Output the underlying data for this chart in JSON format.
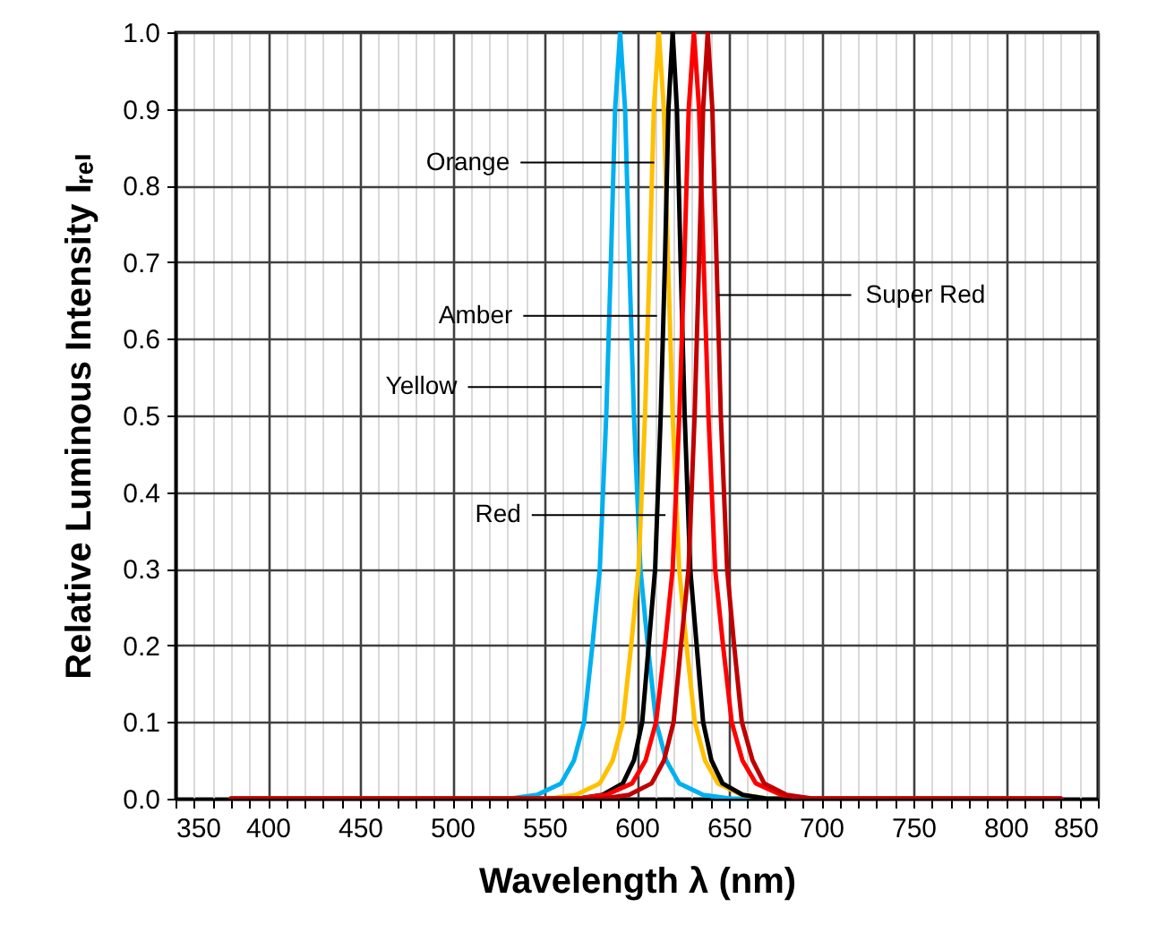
{
  "chart_data": {
    "type": "line",
    "xlabel": "Wavelength λ (nm)",
    "ylabel": "Relative Luminous Intensity Iᵣₑₗ",
    "xlim": [
      350,
      850
    ],
    "ylim": [
      0,
      1
    ],
    "xticks": [
      350,
      {
        "value": 360,
        "label": null
      },
      {
        "value": 370,
        "label": null
      },
      {
        "value": 380,
        "label": null
      },
      {
        "value": 390,
        "label": null
      },
      400,
      {
        "value": 410,
        "label": null
      },
      {
        "value": 420,
        "label": null
      },
      {
        "value": 430,
        "label": null
      },
      {
        "value": 440,
        "label": null
      },
      450,
      {
        "value": 460,
        "label": null
      },
      {
        "value": 470,
        "label": null
      },
      {
        "value": 480,
        "label": null
      },
      {
        "value": 490,
        "label": null
      },
      500,
      {
        "value": 510,
        "label": null
      },
      {
        "value": 520,
        "label": null
      },
      {
        "value": 530,
        "label": null
      },
      {
        "value": 540,
        "label": null
      },
      550,
      {
        "value": 560,
        "label": null
      },
      {
        "value": 570,
        "label": null
      },
      {
        "value": 580,
        "label": null
      },
      {
        "value": 590,
        "label": null
      },
      600,
      {
        "value": 610,
        "label": null
      },
      {
        "value": 620,
        "label": null
      },
      {
        "value": 630,
        "label": null
      },
      {
        "value": 640,
        "label": null
      },
      650,
      {
        "value": 660,
        "label": null
      },
      {
        "value": 670,
        "label": null
      },
      {
        "value": 680,
        "label": null
      },
      {
        "value": 690,
        "label": null
      },
      700,
      {
        "value": 710,
        "label": null
      },
      {
        "value": 720,
        "label": null
      },
      {
        "value": 730,
        "label": null
      },
      {
        "value": 740,
        "label": null
      },
      750,
      {
        "value": 760,
        "label": null
      },
      {
        "value": 770,
        "label": null
      },
      {
        "value": 780,
        "label": null
      },
      {
        "value": 790,
        "label": null
      },
      800,
      {
        "value": 810,
        "label": null
      },
      {
        "value": 820,
        "label": null
      },
      {
        "value": 830,
        "label": null
      },
      {
        "value": 840,
        "label": null
      },
      850
    ],
    "yticks": [
      {
        "value": 0,
        "label": "0.0"
      },
      0.1,
      0.2,
      0.3,
      0.4,
      0.5,
      0.6,
      0.7,
      0.8,
      0.9,
      {
        "value": 1,
        "label": "1.0"
      }
    ],
    "grid": true,
    "line_style": "solid",
    "series": [
      {
        "color": "#00b0f0",
        "x": [
          380,
          531,
          546,
          559,
          566,
          571.5,
          576,
          580,
          583.5,
          586,
          588.3,
          591,
          593.7,
          596,
          598.5,
          602,
          606,
          610.5,
          616,
          623,
          636,
          651,
          830
        ],
        "values": [
          0,
          0,
          0.005,
          0.02,
          0.05,
          0.1,
          0.2,
          0.3,
          0.5,
          0.7,
          0.9,
          1,
          0.9,
          0.7,
          0.5,
          0.3,
          0.2,
          0.1,
          0.05,
          0.02,
          0.005,
          0,
          0
        ]
      },
      {
        "color": "#ffc000",
        "x": [
          380,
          552,
          567,
          580,
          587,
          592.5,
          597,
          601,
          604.5,
          607,
          609.3,
          612,
          614.7,
          617,
          619.5,
          623,
          627,
          631.5,
          637,
          644,
          657,
          672,
          830
        ],
        "values": [
          0,
          0,
          0.005,
          0.02,
          0.05,
          0.1,
          0.2,
          0.3,
          0.5,
          0.7,
          0.9,
          1,
          0.9,
          0.7,
          0.5,
          0.3,
          0.2,
          0.1,
          0.05,
          0.02,
          0.005,
          0,
          0
        ]
      },
      {
        "color": "#000000",
        "x": [
          380,
          568.5,
          581.5,
          592.5,
          598.5,
          603,
          606.5,
          610,
          613,
          615.3,
          617.2,
          619.5,
          621.8,
          623.8,
          626,
          629,
          632.5,
          636,
          640.5,
          646.5,
          657.5,
          670.5,
          830
        ],
        "values": [
          0,
          0,
          0.005,
          0.02,
          0.05,
          0.1,
          0.2,
          0.3,
          0.5,
          0.7,
          0.9,
          1,
          0.9,
          0.7,
          0.5,
          0.3,
          0.2,
          0.1,
          0.05,
          0.02,
          0.005,
          0,
          0
        ]
      },
      {
        "color": "#ff0000",
        "x": [
          380,
          568,
          583.5,
          597.5,
          604.8,
          610.5,
          615.3,
          619.5,
          623.1,
          625.8,
          628.2,
          631,
          633.8,
          636.3,
          638.9,
          642.5,
          646.8,
          651.5,
          657.3,
          664.6,
          678.3,
          694,
          830
        ],
        "values": [
          0,
          0,
          0.005,
          0.02,
          0.05,
          0.1,
          0.2,
          0.3,
          0.5,
          0.7,
          0.9,
          1,
          0.9,
          0.7,
          0.5,
          0.3,
          0.2,
          0.1,
          0.05,
          0.02,
          0.005,
          0,
          0
        ]
      },
      {
        "color": "#c00000",
        "x": [
          380,
          581.5,
          595.8,
          608.1,
          614.8,
          620,
          624,
          628.1,
          631.4,
          633.8,
          636,
          638.5,
          641,
          643.3,
          645.6,
          649,
          652.8,
          657,
          662.8,
          669.1,
          681.3,
          695.5,
          830
        ],
        "values": [
          0,
          0,
          0.005,
          0.02,
          0.05,
          0.1,
          0.2,
          0.3,
          0.5,
          0.7,
          0.9,
          1,
          0.9,
          0.7,
          0.5,
          0.3,
          0.2,
          0.1,
          0.05,
          0.02,
          0.005,
          0,
          0
        ]
      }
    ],
    "annotations": [
      {
        "text": "Orange",
        "x": 609.5,
        "y": 0.83
      },
      {
        "text": "Amber",
        "x": 611,
        "y": 0.63
      },
      {
        "text": "Yellow",
        "x": 581,
        "y": 0.537
      },
      {
        "text": "Red",
        "x": 615.6,
        "y": 0.37
      },
      {
        "text": "Super Red",
        "x": 643.8,
        "y": 0.657
      }
    ]
  }
}
